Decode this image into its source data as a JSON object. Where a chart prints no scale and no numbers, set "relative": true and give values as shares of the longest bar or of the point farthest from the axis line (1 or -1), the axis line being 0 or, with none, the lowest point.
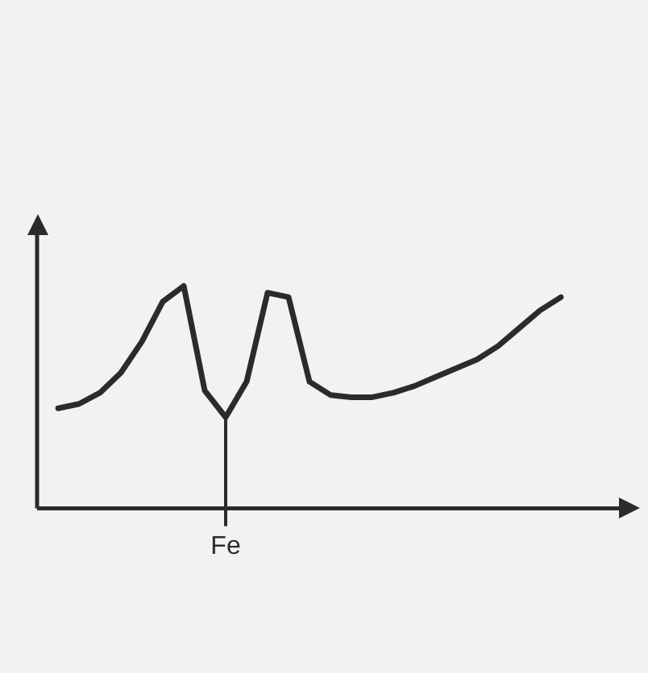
{
  "chart_data": {
    "type": "line",
    "relative": true,
    "categories": [
      null,
      null,
      null,
      null,
      null,
      null,
      null,
      null,
      null,
      null,
      null,
      null,
      null,
      null,
      null,
      null,
      null,
      null,
      null,
      null,
      null,
      null,
      null,
      null,
      null
    ],
    "series": [
      {
        "color": "#2b2b2b",
        "values": [
          0.45,
          0.47,
          0.52,
          0.61,
          0.75,
          0.93,
          1.0,
          0.53,
          0.41,
          0.57,
          0.97,
          0.95,
          0.57,
          0.51,
          0.5,
          0.5,
          0.52,
          0.55,
          0.59,
          0.63,
          0.67,
          0.73,
          0.81,
          0.89,
          0.95
        ]
      }
    ],
    "annotations": [
      "Fe"
    ],
    "grid": false,
    "legend": false,
    "marker": "none",
    "line_style": "solid"
  }
}
